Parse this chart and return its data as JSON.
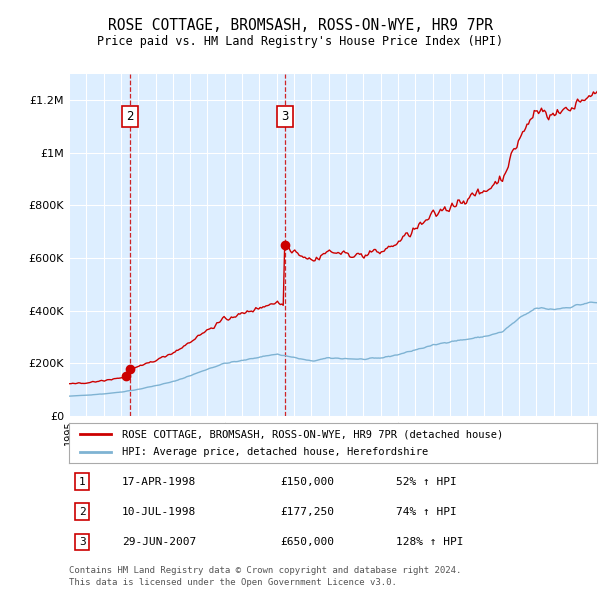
{
  "title": "ROSE COTTAGE, BROMSASH, ROSS-ON-WYE, HR9 7PR",
  "subtitle": "Price paid vs. HM Land Registry's House Price Index (HPI)",
  "legend_line1": "ROSE COTTAGE, BROMSASH, ROSS-ON-WYE, HR9 7PR (detached house)",
  "legend_line2": "HPI: Average price, detached house, Herefordshire",
  "footer_line1": "Contains HM Land Registry data © Crown copyright and database right 2024.",
  "footer_line2": "This data is licensed under the Open Government Licence v3.0.",
  "red_color": "#cc0000",
  "blue_color": "#7fb3d3",
  "background_color": "#ddeeff",
  "ylim": [
    0,
    1300000
  ],
  "yticks": [
    0,
    200000,
    400000,
    600000,
    800000,
    1000000,
    1200000
  ],
  "xlim_start": 1995.0,
  "xlim_end": 2025.5,
  "transactions": [
    {
      "num": 1,
      "date": "17-APR-1998",
      "price": 150000,
      "pct": "52%",
      "year": 1998.29,
      "show_vline": false
    },
    {
      "num": 2,
      "date": "10-JUL-1998",
      "price": 177250,
      "pct": "74%",
      "year": 1998.53,
      "show_vline": true
    },
    {
      "num": 3,
      "date": "29-JUN-2007",
      "price": 650000,
      "pct": "128%",
      "year": 2007.49,
      "show_vline": true
    }
  ]
}
